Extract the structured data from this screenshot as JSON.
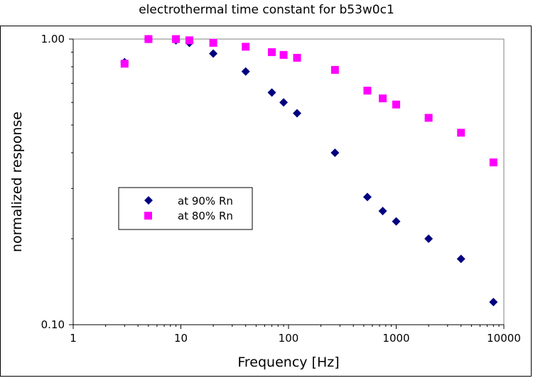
{
  "chart_data": {
    "type": "scatter",
    "title": "electrothermal time constant for b53w0c1",
    "xlabel": "Frequency [Hz]",
    "ylabel": "normalized response",
    "xscale": "log",
    "yscale": "log",
    "xlim": [
      1,
      10000
    ],
    "ylim": [
      0.1,
      1.0
    ],
    "x_tick_labels": [
      "1",
      "10",
      "100",
      "1000",
      "10000"
    ],
    "y_tick_labels": [
      "0.10",
      "1.00"
    ],
    "legend_position": "left-center",
    "grid": false,
    "series": [
      {
        "name": "at 90% Rn",
        "marker": "diamond",
        "color": "#000080",
        "x": [
          3,
          5,
          9,
          12,
          20,
          40,
          70,
          90,
          120,
          270,
          540,
          750,
          1000,
          2000,
          4000,
          8000
        ],
        "y": [
          0.83,
          1.0,
          0.99,
          0.97,
          0.89,
          0.77,
          0.65,
          0.6,
          0.55,
          0.4,
          0.28,
          0.25,
          0.23,
          0.2,
          0.17,
          0.12
        ]
      },
      {
        "name": "at 80% Rn",
        "marker": "square",
        "color": "#FF00FF",
        "x": [
          3,
          5,
          9,
          12,
          20,
          40,
          70,
          90,
          120,
          270,
          540,
          750,
          1000,
          2000,
          4000,
          8000
        ],
        "y": [
          0.82,
          1.0,
          1.0,
          0.99,
          0.97,
          0.94,
          0.9,
          0.88,
          0.86,
          0.78,
          0.66,
          0.62,
          0.59,
          0.53,
          0.47,
          0.37
        ]
      }
    ]
  }
}
